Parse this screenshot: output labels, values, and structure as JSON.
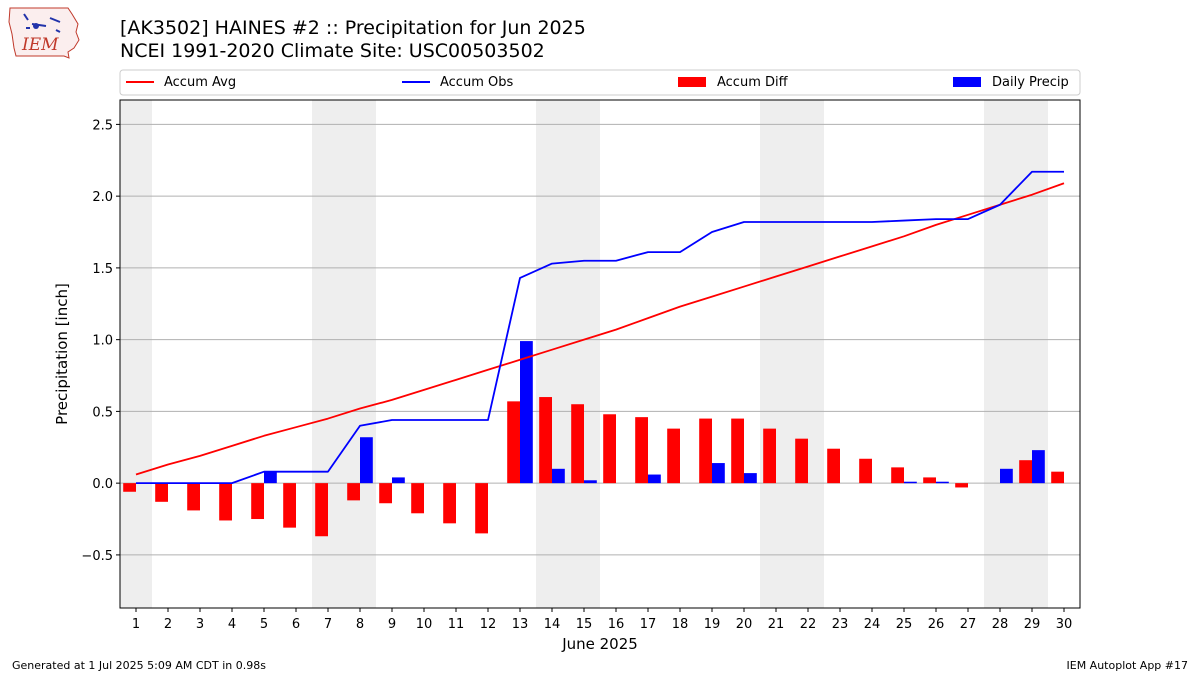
{
  "header": {
    "title_line_1": "[AK3502] HAINES #2 :: Precipitation for Jun 2025",
    "title_line_2": "NCEI 1991-2020 Climate Site: USC00503502"
  },
  "logo": {
    "text": "IEM",
    "icon": "iowa-state-map-icon"
  },
  "footer": {
    "left": "Generated at 1 Jul 2025 5:09 AM CDT in 0.98s",
    "right": "IEM Autoplot App #17"
  },
  "chart_data": {
    "type": "bar",
    "xlabel": "June 2025",
    "ylabel": "Precipitation [inch]",
    "x": [
      1,
      2,
      3,
      4,
      5,
      6,
      7,
      8,
      9,
      10,
      11,
      12,
      13,
      14,
      15,
      16,
      17,
      18,
      19,
      20,
      21,
      22,
      23,
      24,
      25,
      26,
      27,
      28,
      29,
      30
    ],
    "ylim": [
      -0.87,
      2.67
    ],
    "yticks": [
      -0.5,
      0.0,
      0.5,
      1.0,
      1.5,
      2.0,
      2.5
    ],
    "ytick_labels": [
      "−0.5",
      "0.0",
      "0.5",
      "1.0",
      "1.5",
      "2.0",
      "2.5"
    ],
    "grid": "horizontal",
    "weekend_shading_days": [
      1,
      7,
      8,
      14,
      15,
      21,
      22,
      28,
      29
    ],
    "legend_placement": "top",
    "series": [
      {
        "name": "Accum Avg",
        "kind": "line",
        "color": "#ff0000",
        "values": [
          0.06,
          0.13,
          0.19,
          0.26,
          0.33,
          0.39,
          0.45,
          0.52,
          0.58,
          0.65,
          0.72,
          0.79,
          0.86,
          0.93,
          1.0,
          1.07,
          1.15,
          1.23,
          1.3,
          1.37,
          1.44,
          1.51,
          1.58,
          1.65,
          1.72,
          1.8,
          1.87,
          1.94,
          2.01,
          2.09
        ]
      },
      {
        "name": "Accum Obs",
        "kind": "line",
        "color": "#0000ff",
        "values": [
          0.0,
          0.0,
          0.0,
          0.0,
          0.08,
          0.08,
          0.08,
          0.4,
          0.44,
          0.44,
          0.44,
          0.44,
          1.43,
          1.53,
          1.55,
          1.55,
          1.61,
          1.61,
          1.75,
          1.82,
          1.82,
          1.82,
          1.82,
          1.82,
          1.83,
          1.84,
          1.84,
          1.94,
          2.17,
          2.17
        ]
      },
      {
        "name": "Accum Diff",
        "kind": "bar",
        "color": "#ff0000",
        "values": [
          -0.06,
          -0.13,
          -0.19,
          -0.26,
          -0.25,
          -0.31,
          -0.37,
          -0.12,
          -0.14,
          -0.21,
          -0.28,
          -0.35,
          0.57,
          0.6,
          0.55,
          0.48,
          0.46,
          0.38,
          0.45,
          0.45,
          0.38,
          0.31,
          0.24,
          0.17,
          0.11,
          0.04,
          -0.03,
          0.0,
          0.16,
          0.08
        ]
      },
      {
        "name": "Daily Precip",
        "kind": "bar",
        "color": "#0000ff",
        "values": [
          0,
          0,
          0,
          0,
          0.08,
          0,
          0,
          0.32,
          0.04,
          0,
          0,
          0,
          0.99,
          0.1,
          0.02,
          0,
          0.06,
          0,
          0.14,
          0.07,
          0,
          0,
          0,
          0,
          0.01,
          0.01,
          0,
          0.1,
          0.23,
          0
        ]
      }
    ]
  }
}
